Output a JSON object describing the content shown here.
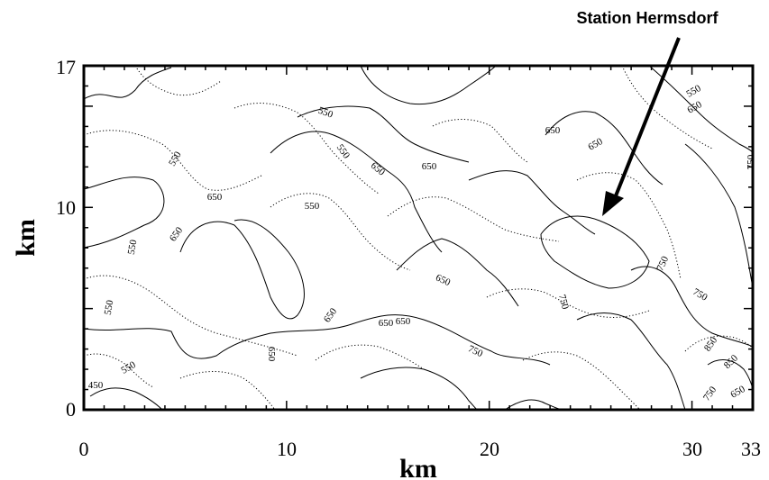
{
  "annotation": {
    "text": "Station Hermsdorf"
  },
  "axes": {
    "x": {
      "label": "km",
      "min": 0,
      "max": 33,
      "ticks": [
        "0",
        "10",
        "20",
        "30",
        "33"
      ]
    },
    "y": {
      "label": "km",
      "min": 0,
      "max": 17,
      "ticks": [
        "0",
        "10",
        "17"
      ]
    }
  },
  "contour_labels": [
    "550",
    "550",
    "650",
    "650",
    "550",
    "650",
    "550",
    "550",
    "650",
    "650",
    "550",
    "650",
    "650",
    "650",
    "750",
    "750",
    "750",
    "650",
    "650",
    "750",
    "850",
    "850",
    "750",
    "650",
    "450",
    "550",
    "650",
    "750",
    "550",
    "650"
  ],
  "contour_levels": [
    450,
    550,
    650,
    750,
    850
  ],
  "line_styles": {
    "labelled": "solid",
    "intermediate": "dotted"
  }
}
